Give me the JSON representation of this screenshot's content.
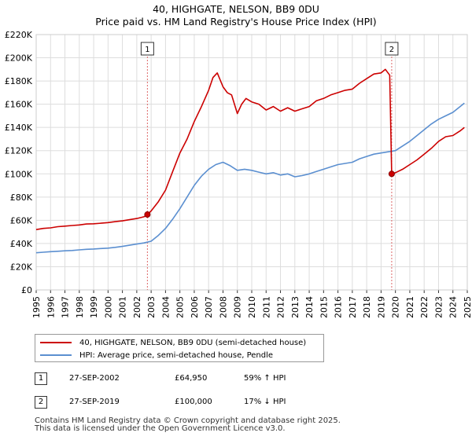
{
  "title": "40, HIGHGATE, NELSON, BB9 0DU",
  "subtitle": "Price paid vs. HM Land Registry's House Price Index (HPI)",
  "colors": {
    "property": "#cc0000",
    "hpi": "#5b8fd0",
    "marker_line": "#dd6666",
    "grid": "#dddddd"
  },
  "chart_data": {
    "type": "line",
    "title": "40, HIGHGATE, NELSON, BB9 0DU",
    "subtitle": "Price paid vs. HM Land Registry's House Price Index (HPI)",
    "xlabel": "",
    "ylabel": "",
    "xlim": [
      1995,
      2025
    ],
    "ylim": [
      0,
      220000
    ],
    "y_ticks": [
      {
        "value": 0,
        "label": "£0"
      },
      {
        "value": 20000,
        "label": "£20K"
      },
      {
        "value": 40000,
        "label": "£40K"
      },
      {
        "value": 60000,
        "label": "£60K"
      },
      {
        "value": 80000,
        "label": "£80K"
      },
      {
        "value": 100000,
        "label": "£100K"
      },
      {
        "value": 120000,
        "label": "£120K"
      },
      {
        "value": 140000,
        "label": "£140K"
      },
      {
        "value": 160000,
        "label": "£160K"
      },
      {
        "value": 180000,
        "label": "£180K"
      },
      {
        "value": 200000,
        "label": "£200K"
      },
      {
        "value": 220000,
        "label": "£220K"
      }
    ],
    "x_ticks": [
      "1995",
      "1996",
      "1997",
      "1998",
      "1999",
      "2000",
      "2001",
      "2002",
      "2003",
      "2004",
      "2005",
      "2006",
      "2007",
      "2008",
      "2009",
      "2010",
      "2011",
      "2012",
      "2013",
      "2014",
      "2015",
      "2016",
      "2017",
      "2018",
      "2019",
      "2020",
      "2021",
      "2022",
      "2023",
      "2024",
      "2025"
    ],
    "grid": true,
    "series": [
      {
        "name": "40, HIGHGATE, NELSON, BB9 0DU (semi-detached house)",
        "color": "#cc0000",
        "x": [
          1995.0,
          1995.5,
          1996.0,
          1996.5,
          1997.0,
          1997.5,
          1998.0,
          1998.5,
          1999.0,
          1999.5,
          2000.0,
          2000.5,
          2001.0,
          2001.5,
          2002.0,
          2002.5,
          2002.74,
          2003.0,
          2003.5,
          2004.0,
          2004.5,
          2005.0,
          2005.5,
          2006.0,
          2006.5,
          2007.0,
          2007.3,
          2007.6,
          2008.0,
          2008.3,
          2008.6,
          2009.0,
          2009.3,
          2009.6,
          2010.0,
          2010.5,
          2011.0,
          2011.5,
          2012.0,
          2012.5,
          2013.0,
          2013.5,
          2014.0,
          2014.5,
          2015.0,
          2015.5,
          2016.0,
          2016.5,
          2017.0,
          2017.5,
          2018.0,
          2018.5,
          2019.0,
          2019.3,
          2019.6,
          2019.74,
          2020.0,
          2020.5,
          2021.0,
          2021.5,
          2022.0,
          2022.5,
          2023.0,
          2023.5,
          2024.0,
          2024.5,
          2024.8
        ],
        "values": [
          52000,
          53000,
          53500,
          54500,
          55000,
          55500,
          56000,
          56800,
          57000,
          57500,
          58000,
          58800,
          59500,
          60500,
          61500,
          63000,
          64950,
          68000,
          76000,
          86000,
          102000,
          118000,
          130000,
          145000,
          158000,
          172000,
          183000,
          187000,
          175000,
          170000,
          168000,
          152000,
          160000,
          165000,
          162000,
          160000,
          155000,
          158000,
          154000,
          157000,
          154000,
          156000,
          158000,
          163000,
          165000,
          168000,
          170000,
          172000,
          173000,
          178000,
          182000,
          186000,
          187000,
          190000,
          185000,
          100000,
          101000,
          104000,
          108000,
          112000,
          117000,
          122000,
          128000,
          132000,
          133000,
          137000,
          140000
        ]
      },
      {
        "name": "HPI: Average price, semi-detached house, Pendle",
        "color": "#5b8fd0",
        "x": [
          1995.0,
          1995.5,
          1996.0,
          1996.5,
          1997.0,
          1997.5,
          1998.0,
          1998.5,
          1999.0,
          1999.5,
          2000.0,
          2000.5,
          2001.0,
          2001.5,
          2002.0,
          2002.5,
          2003.0,
          2003.5,
          2004.0,
          2004.5,
          2005.0,
          2005.5,
          2006.0,
          2006.5,
          2007.0,
          2007.5,
          2008.0,
          2008.5,
          2009.0,
          2009.5,
          2010.0,
          2010.5,
          2011.0,
          2011.5,
          2012.0,
          2012.5,
          2013.0,
          2013.5,
          2014.0,
          2014.5,
          2015.0,
          2015.5,
          2016.0,
          2016.5,
          2017.0,
          2017.5,
          2018.0,
          2018.5,
          2019.0,
          2019.5,
          2020.0,
          2020.5,
          2021.0,
          2021.5,
          2022.0,
          2022.5,
          2023.0,
          2023.5,
          2024.0,
          2024.5,
          2024.8
        ],
        "values": [
          32000,
          32500,
          33000,
          33300,
          33700,
          34000,
          34500,
          35000,
          35300,
          35700,
          36000,
          36700,
          37500,
          38500,
          39500,
          40500,
          42000,
          47000,
          53000,
          61000,
          70000,
          80000,
          90000,
          98000,
          104000,
          108000,
          110000,
          107000,
          103000,
          104000,
          103000,
          101500,
          100000,
          101000,
          99000,
          100000,
          97500,
          98500,
          100000,
          102000,
          104000,
          106000,
          108000,
          109000,
          110000,
          113000,
          115000,
          117000,
          118000,
          119000,
          120000,
          124000,
          128000,
          133000,
          138000,
          143000,
          147000,
          150000,
          153000,
          158000,
          161000
        ]
      }
    ],
    "transactions": [
      {
        "id": "1",
        "x": 2002.74,
        "value": 64950
      },
      {
        "id": "2",
        "x": 2019.74,
        "value": 100000
      }
    ]
  },
  "legend": {
    "property_label": "40, HIGHGATE, NELSON, BB9 0DU (semi-detached house)",
    "hpi_label": "HPI: Average price, semi-detached house, Pendle"
  },
  "transactions_table": [
    {
      "num": "1",
      "date": "27-SEP-2002",
      "price": "£64,950",
      "hpi": "59% ↑ HPI"
    },
    {
      "num": "2",
      "date": "27-SEP-2019",
      "price": "£100,000",
      "hpi": "17% ↓ HPI"
    }
  ],
  "footer": {
    "line1": "Contains HM Land Registry data © Crown copyright and database right 2025.",
    "line2": "This data is licensed under the Open Government Licence v3.0."
  }
}
